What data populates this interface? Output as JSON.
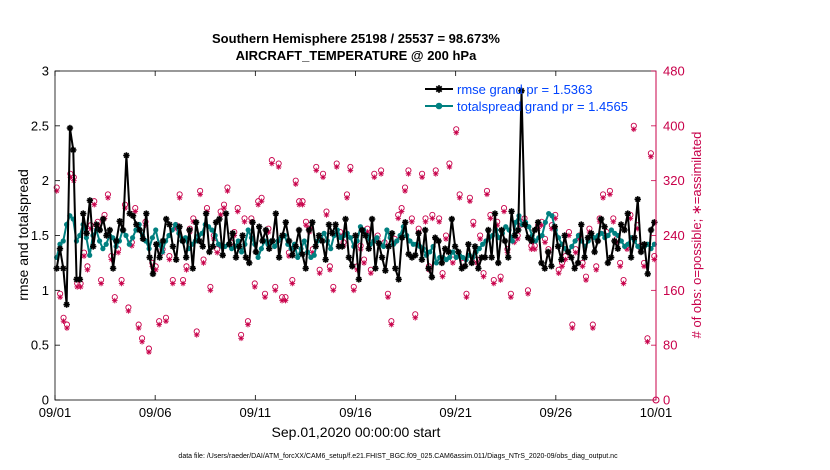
{
  "chart_data": {
    "type": "line",
    "title_line1": "Southern Hemisphere 25198 / 25537 = 98.673%",
    "title_line2": "AIRCRAFT_TEMPERATURE @ 200 hPa",
    "xlabel": "Sep.01,2020 00:00:00 start",
    "ylabel": "rmse and totalspread",
    "ylabel_right": "# of obs: o=possible; ∗=assimilated",
    "xlim": [
      0,
      30
    ],
    "ylim": [
      0,
      3
    ],
    "ylim_right": [
      0,
      480
    ],
    "x_ticks": [
      0,
      5,
      10,
      15,
      20,
      25,
      30
    ],
    "x_tick_labels": [
      "09/01",
      "09/06",
      "09/11",
      "09/16",
      "09/21",
      "09/26",
      "10/01"
    ],
    "y_ticks": [
      0,
      0.5,
      1,
      1.5,
      2,
      2.5,
      3
    ],
    "y_tick_labels": [
      "0",
      "0.5",
      "1",
      "1.5",
      "2",
      "2.5",
      "3"
    ],
    "y2_ticks": [
      0,
      80,
      160,
      240,
      320,
      400,
      480
    ],
    "y2_tick_labels": [
      "0",
      "80",
      "160",
      "240",
      "320",
      "400",
      "480"
    ],
    "series": [
      {
        "name": "rmse",
        "legend": "rmse grand pr = 1.5363",
        "color": "#000000",
        "marker": "star",
        "values": [
          1.2,
          1.38,
          1.2,
          0.87,
          2.48,
          2.28,
          1.1,
          1.1,
          1.7,
          1.52,
          1.82,
          1.4,
          1.6,
          1.55,
          1.65,
          1.5,
          1.55,
          1.2,
          1.45,
          1.63,
          1.55,
          2.23,
          1.7,
          1.68,
          1.6,
          1.55,
          1.47,
          1.7,
          1.3,
          1.15,
          1.42,
          1.3,
          1.45,
          1.65,
          1.6,
          1.4,
          1.28,
          1.58,
          1.45,
          1.3,
          1.55,
          1.2,
          1.62,
          1.45,
          1.4,
          1.7,
          1.35,
          1.4,
          1.62,
          1.65,
          1.32,
          1.7,
          1.42,
          1.52,
          1.3,
          1.4,
          1.5,
          1.3,
          1.25,
          1.62,
          1.35,
          1.58,
          1.45,
          1.55,
          1.38,
          1.45,
          1.7,
          1.3,
          1.5,
          1.62,
          1.45,
          1.32,
          1.4,
          1.55,
          1.33,
          1.2,
          1.55,
          1.62,
          1.4,
          1.5,
          1.45,
          1.28,
          1.6,
          1.52,
          1.6,
          1.4,
          1.4,
          1.65,
          1.3,
          1.22,
          1.5,
          1.1,
          1.55,
          1.5,
          1.38,
          1.65,
          1.2,
          1.43,
          1.3,
          1.18,
          1.4,
          1.52,
          1.2,
          1.1,
          1.48,
          1.62,
          1.33,
          1.3,
          1.32,
          1.52,
          1.28,
          1.55,
          1.2,
          1.12,
          1.48,
          1.45,
          1.25,
          1.38,
          1.35,
          1.65,
          1.4,
          1.35,
          1.2,
          1.22,
          1.42,
          1.25,
          1.4,
          1.2,
          1.3,
          1.3,
          1.55,
          1.3,
          1.7,
          1.25,
          1.55,
          1.45,
          1.3,
          1.72,
          1.5,
          1.55,
          2.82,
          1.6,
          1.48,
          1.45,
          1.55,
          1.62,
          1.25,
          1.2,
          1.35,
          1.22,
          1.58,
          1.4,
          1.28,
          1.5,
          1.35,
          1.3,
          1.2,
          1.25,
          1.6,
          1.3,
          1.48,
          1.52,
          1.35,
          1.45,
          1.65,
          1.58,
          1.25,
          1.3,
          1.45,
          1.38,
          1.6,
          1.55,
          1.7,
          1.3,
          1.48,
          1.83,
          1.35,
          1.42,
          1.15,
          1.55,
          1.62
        ]
      },
      {
        "name": "totalspread",
        "legend": "totalspread grand pr = 1.4565",
        "color": "#008080",
        "marker": "circle",
        "values": [
          1.3,
          1.42,
          1.45,
          1.6,
          1.68,
          1.65,
          1.45,
          1.5,
          1.6,
          1.48,
          1.32,
          1.5,
          1.55,
          1.45,
          1.38,
          1.42,
          1.5,
          1.48,
          1.4,
          1.45,
          1.55,
          1.5,
          1.42,
          1.48,
          1.55,
          1.6,
          1.5,
          1.45,
          1.38,
          1.48,
          1.55,
          1.42,
          1.35,
          1.45,
          1.5,
          1.55,
          1.6,
          1.52,
          1.45,
          1.48,
          1.38,
          1.42,
          1.45,
          1.5,
          1.52,
          1.6,
          1.58,
          1.55,
          1.5,
          1.42,
          1.4,
          1.4,
          1.42,
          1.38,
          1.4,
          1.45,
          1.35,
          1.42,
          1.55,
          1.48,
          1.42,
          1.3,
          1.38,
          1.45,
          1.42,
          1.45,
          1.4,
          1.45,
          1.48,
          1.5,
          1.42,
          1.38,
          1.42,
          1.3,
          1.38,
          1.45,
          1.35,
          1.3,
          1.32,
          1.45,
          1.48,
          1.52,
          1.45,
          1.38,
          1.5,
          1.55,
          1.48,
          1.5,
          1.52,
          1.48,
          1.4,
          1.45,
          1.58,
          1.55,
          1.5,
          1.42,
          1.45,
          1.48,
          1.42,
          1.4,
          1.55,
          1.48,
          1.42,
          1.45,
          1.5,
          1.58,
          1.5,
          1.45,
          1.42,
          1.42,
          1.4,
          1.38,
          1.32,
          1.35,
          1.4,
          1.25,
          1.3,
          1.3,
          1.28,
          1.3,
          1.35,
          1.3,
          1.32,
          1.3,
          1.28,
          1.32,
          1.3,
          1.35,
          1.38,
          1.42,
          1.45,
          1.48,
          1.5,
          1.55,
          1.48,
          1.52,
          1.58,
          1.55,
          1.45,
          1.62,
          1.68,
          1.6,
          1.62,
          1.58,
          1.5,
          1.45,
          1.48,
          1.5,
          1.62,
          1.7,
          1.68,
          1.55,
          1.48,
          1.42,
          1.38,
          1.35,
          1.4,
          1.45,
          1.5,
          1.45,
          1.4,
          1.45,
          1.5,
          1.48,
          1.5,
          1.52,
          1.48,
          1.5,
          1.55,
          1.52,
          1.5,
          1.45,
          1.4,
          1.42,
          1.48,
          1.45,
          1.4,
          1.38,
          1.4,
          1.42,
          1.38,
          1.42
        ]
      }
    ],
    "obs_possible": [
      310,
      155,
      120,
      110,
      330,
      325,
      170,
      170,
      215,
      195,
      255,
      290,
      260,
      175,
      270,
      300,
      210,
      150,
      220,
      175,
      285,
      135,
      230,
      280,
      110,
      90,
      260,
      75,
      200,
      195,
      115,
      220,
      120,
      210,
      175,
      255,
      300,
      175,
      195,
      250,
      265,
      100,
      305,
      205,
      280,
      165,
      240,
      220,
      275,
      285,
      310,
      230,
      245,
      280,
      95,
      265,
      115,
      265,
      170,
      290,
      295,
      155,
      250,
      350,
      165,
      345,
      150,
      150,
      215,
      175,
      320,
      290,
      290,
      260,
      250,
      220,
      340,
      190,
      330,
      275,
      195,
      165,
      345,
      245,
      230,
      300,
      340,
      165,
      195,
      225,
      205,
      250,
      190,
      330,
      240,
      335,
      230,
      155,
      115,
      235,
      270,
      280,
      310,
      335,
      265,
      125,
      250,
      330,
      265,
      195,
      270,
      335,
      265,
      185,
      240,
      345,
      205,
      395,
      300,
      200,
      155,
      295,
      260,
      205,
      240,
      185,
      305,
      270,
      175,
      260,
      180,
      280,
      220,
      155,
      235,
      240,
      260,
      265,
      160,
      225,
      225,
      255,
      260,
      235,
      220,
      255,
      270,
      190,
      200,
      210,
      245,
      110,
      220,
      240,
      200,
      180,
      250,
      110,
      195,
      265,
      300,
      245,
      305,
      265,
      235,
      200,
      175,
      225,
      270,
      400,
      255,
      225,
      200,
      90,
      360,
      210
    ],
    "obs_assimilated": [
      305,
      150,
      115,
      105,
      325,
      320,
      165,
      165,
      210,
      190,
      250,
      285,
      255,
      170,
      265,
      295,
      205,
      145,
      215,
      170,
      280,
      130,
      225,
      275,
      105,
      85,
      255,
      70,
      195,
      190,
      110,
      215,
      115,
      205,
      170,
      250,
      295,
      170,
      190,
      245,
      260,
      95,
      300,
      200,
      275,
      160,
      235,
      215,
      270,
      280,
      305,
      225,
      240,
      275,
      90,
      260,
      110,
      260,
      165,
      285,
      290,
      150,
      245,
      345,
      160,
      340,
      145,
      145,
      210,
      170,
      315,
      285,
      285,
      255,
      245,
      215,
      335,
      185,
      325,
      270,
      190,
      160,
      340,
      240,
      225,
      295,
      335,
      160,
      190,
      220,
      200,
      245,
      185,
      325,
      235,
      330,
      225,
      150,
      110,
      230,
      265,
      275,
      305,
      330,
      260,
      120,
      245,
      325,
      260,
      190,
      265,
      330,
      260,
      180,
      235,
      340,
      200,
      390,
      295,
      195,
      150,
      290,
      255,
      200,
      235,
      180,
      300,
      265,
      170,
      255,
      175,
      275,
      215,
      150,
      230,
      235,
      255,
      260,
      155,
      220,
      220,
      250,
      255,
      230,
      215,
      250,
      265,
      185,
      195,
      205,
      240,
      105,
      215,
      235,
      195,
      175,
      245,
      105,
      190,
      260,
      295,
      240,
      300,
      260,
      230,
      195,
      170,
      220,
      265,
      395,
      250,
      220,
      195,
      85,
      355,
      205
    ],
    "colors": {
      "rmse": "#000000",
      "totalspread": "#008080",
      "obs": "#c8004a",
      "legend_text": "#0044ff",
      "right_axis": "#c8004a"
    }
  },
  "footer": "data file: /Users/raeder/DAI/ATM_forcXX/CAM6_setup/f.e21.FHIST_BGC.f09_025.CAM6assim.011/Diags_NTrS_2020-09/obs_diag_output.nc"
}
